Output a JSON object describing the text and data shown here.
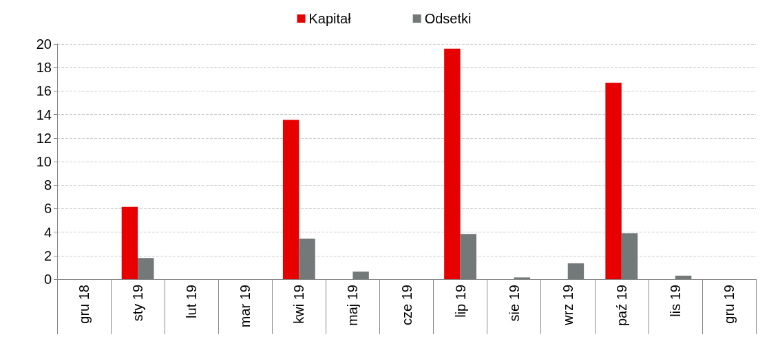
{
  "chart_data": {
    "type": "bar",
    "categories": [
      "gru 18",
      "sty 19",
      "lut 19",
      "mar 19",
      "kwi 19",
      "maj 19",
      "cze 19",
      "lip 19",
      "sie 19",
      "wrz 19",
      "paź 19",
      "lis 19",
      "gru 19"
    ],
    "series": [
      {
        "name": "Kapitał",
        "color": "#e60000",
        "values": [
          0,
          6.15,
          0,
          0,
          13.55,
          0,
          0,
          19.6,
          0,
          0,
          16.7,
          0,
          0
        ]
      },
      {
        "name": "Odsetki",
        "color": "#737878",
        "values": [
          0,
          1.8,
          0,
          0,
          3.45,
          0.65,
          0,
          3.85,
          0.15,
          1.35,
          3.9,
          0.3,
          0
        ]
      }
    ],
    "ylim": [
      0,
      20
    ],
    "yticks": [
      0,
      2,
      4,
      6,
      8,
      10,
      12,
      14,
      16,
      18,
      20
    ],
    "grid": "y",
    "legend": "top"
  }
}
